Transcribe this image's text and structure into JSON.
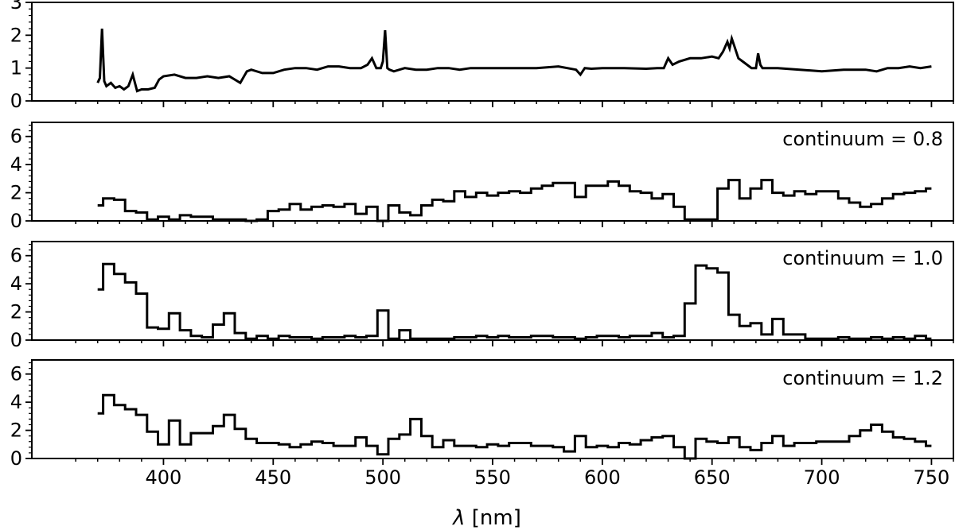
{
  "figure": {
    "xlabel_sym": "λ",
    "xlabel_unit": " [nm]"
  },
  "chart_data": [
    {
      "type": "line",
      "panel": "spectrum",
      "xlim": [
        340,
        760
      ],
      "ylim": [
        0,
        3
      ],
      "yticks": [
        "0",
        "1",
        "2",
        "3"
      ],
      "annotation": "",
      "series": [
        {
          "color": "#000000",
          "x": [
            370,
            371,
            372,
            373,
            374,
            376,
            378,
            380,
            382,
            384,
            386,
            388,
            390,
            393,
            396,
            398,
            400,
            405,
            410,
            415,
            420,
            425,
            430,
            435,
            438,
            440,
            445,
            450,
            455,
            460,
            465,
            470,
            475,
            480,
            485,
            490,
            493,
            495,
            497,
            499,
            500,
            501,
            502,
            503,
            505,
            510,
            515,
            520,
            525,
            530,
            535,
            540,
            545,
            550,
            560,
            570,
            580,
            588,
            590,
            592,
            595,
            600,
            610,
            620,
            625,
            628,
            630,
            632,
            635,
            640,
            645,
            650,
            653,
            655,
            657,
            658,
            659,
            660,
            662,
            665,
            668,
            670,
            671,
            672,
            673,
            675,
            680,
            690,
            700,
            710,
            720,
            725,
            730,
            735,
            740,
            745,
            750
          ],
          "y": [
            0.55,
            0.7,
            2.2,
            0.6,
            0.45,
            0.55,
            0.4,
            0.45,
            0.35,
            0.45,
            0.8,
            0.3,
            0.35,
            0.35,
            0.4,
            0.65,
            0.75,
            0.8,
            0.7,
            0.7,
            0.75,
            0.7,
            0.75,
            0.55,
            0.9,
            0.95,
            0.85,
            0.85,
            0.95,
            1.0,
            1.0,
            0.95,
            1.05,
            1.05,
            1.0,
            1.0,
            1.1,
            1.3,
            1.0,
            1.0,
            1.2,
            2.15,
            1.0,
            0.95,
            0.9,
            1.0,
            0.95,
            0.95,
            1.0,
            1.0,
            0.95,
            1.0,
            1.0,
            1.0,
            1.0,
            1.0,
            1.05,
            0.95,
            0.8,
            1.0,
            0.98,
            1.0,
            1.0,
            0.98,
            1.0,
            1.0,
            1.3,
            1.1,
            1.2,
            1.3,
            1.3,
            1.35,
            1.3,
            1.5,
            1.8,
            1.6,
            1.9,
            1.7,
            1.3,
            1.15,
            1.0,
            1.0,
            1.45,
            1.1,
            1.0,
            1.0,
            1.0,
            0.95,
            0.9,
            0.95,
            0.95,
            0.9,
            1.0,
            1.0,
            1.05,
            1.0,
            1.05
          ]
        }
      ]
    },
    {
      "type": "line",
      "panel": "continuum-0.8",
      "step": true,
      "xlim": [
        340,
        760
      ],
      "ylim": [
        0,
        7
      ],
      "yticks": [
        "0",
        "2",
        "4",
        "6"
      ],
      "annotation": "continuum = 0.8",
      "series": [
        {
          "color": "#000000",
          "x": [
            370,
            375,
            380,
            385,
            390,
            395,
            400,
            405,
            410,
            415,
            420,
            425,
            430,
            435,
            440,
            445,
            450,
            455,
            460,
            465,
            470,
            475,
            480,
            485,
            490,
            495,
            500,
            505,
            510,
            515,
            520,
            525,
            530,
            535,
            540,
            545,
            550,
            555,
            560,
            565,
            570,
            575,
            580,
            585,
            590,
            595,
            600,
            605,
            610,
            615,
            620,
            625,
            630,
            635,
            640,
            645,
            650,
            655,
            660,
            665,
            670,
            675,
            680,
            685,
            690,
            695,
            700,
            705,
            710,
            715,
            720,
            725,
            730,
            735,
            740,
            745,
            750
          ],
          "y": [
            1.1,
            1.6,
            1.5,
            0.7,
            0.6,
            0.1,
            0.3,
            0.1,
            0.4,
            0.3,
            0.3,
            0.1,
            0.1,
            0.1,
            0.0,
            0.1,
            0.7,
            0.8,
            1.2,
            0.8,
            1.0,
            1.1,
            1.0,
            1.2,
            0.5,
            1.0,
            0.0,
            1.1,
            0.6,
            0.4,
            1.1,
            1.5,
            1.4,
            2.1,
            1.7,
            2.0,
            1.8,
            2.0,
            2.1,
            2.0,
            2.3,
            2.5,
            2.7,
            2.7,
            1.7,
            2.5,
            2.5,
            2.8,
            2.5,
            2.1,
            2.0,
            1.6,
            1.9,
            1.0,
            0.1,
            0.1,
            0.1,
            2.3,
            2.9,
            1.6,
            2.3,
            2.9,
            2.0,
            1.8,
            2.1,
            1.9,
            2.1,
            2.1,
            1.6,
            1.3,
            1.0,
            1.2,
            1.6,
            1.9,
            2.0,
            2.1,
            2.3
          ]
        }
      ]
    },
    {
      "type": "line",
      "panel": "continuum-1.0",
      "step": true,
      "xlim": [
        340,
        760
      ],
      "ylim": [
        0,
        7
      ],
      "yticks": [
        "0",
        "2",
        "4",
        "6"
      ],
      "annotation": "continuum = 1.0",
      "series": [
        {
          "color": "#000000",
          "x": [
            370,
            375,
            380,
            385,
            390,
            395,
            400,
            405,
            410,
            415,
            420,
            425,
            430,
            435,
            440,
            445,
            450,
            455,
            460,
            465,
            470,
            475,
            480,
            485,
            490,
            495,
            500,
            505,
            510,
            515,
            520,
            525,
            530,
            535,
            540,
            545,
            550,
            555,
            560,
            565,
            570,
            575,
            580,
            585,
            590,
            595,
            600,
            605,
            610,
            615,
            620,
            625,
            630,
            635,
            640,
            645,
            650,
            655,
            660,
            665,
            670,
            675,
            680,
            685,
            690,
            695,
            700,
            705,
            710,
            715,
            720,
            725,
            730,
            735,
            740,
            745,
            750
          ],
          "y": [
            3.6,
            5.4,
            4.7,
            4.1,
            3.3,
            0.9,
            0.8,
            1.9,
            0.7,
            0.3,
            0.2,
            1.1,
            1.9,
            0.5,
            0.1,
            0.3,
            0.1,
            0.3,
            0.2,
            0.2,
            0.1,
            0.2,
            0.2,
            0.3,
            0.2,
            0.3,
            2.1,
            0.1,
            0.7,
            0.1,
            0.1,
            0.1,
            0.1,
            0.2,
            0.2,
            0.3,
            0.2,
            0.3,
            0.2,
            0.2,
            0.3,
            0.3,
            0.2,
            0.2,
            0.1,
            0.2,
            0.3,
            0.3,
            0.2,
            0.3,
            0.3,
            0.5,
            0.2,
            0.3,
            2.6,
            5.3,
            5.1,
            4.8,
            1.8,
            1.0,
            1.2,
            0.4,
            1.5,
            0.4,
            0.4,
            0.1,
            0.1,
            0.1,
            0.2,
            0.1,
            0.1,
            0.2,
            0.1,
            0.2,
            0.1,
            0.3,
            0.1
          ]
        }
      ]
    },
    {
      "type": "line",
      "panel": "continuum-1.2",
      "step": true,
      "xlim": [
        340,
        760
      ],
      "ylim": [
        0,
        7
      ],
      "yticks": [
        "0",
        "2",
        "4",
        "6"
      ],
      "annotation": "continuum = 1.2",
      "series": [
        {
          "color": "#000000",
          "x": [
            370,
            375,
            380,
            385,
            390,
            395,
            400,
            405,
            410,
            415,
            420,
            425,
            430,
            435,
            440,
            445,
            450,
            455,
            460,
            465,
            470,
            475,
            480,
            485,
            490,
            495,
            500,
            505,
            510,
            515,
            520,
            525,
            530,
            535,
            540,
            545,
            550,
            555,
            560,
            565,
            570,
            575,
            580,
            585,
            590,
            595,
            600,
            605,
            610,
            615,
            620,
            625,
            630,
            635,
            640,
            645,
            650,
            655,
            660,
            665,
            670,
            675,
            680,
            685,
            690,
            695,
            700,
            705,
            710,
            715,
            720,
            725,
            730,
            735,
            740,
            745,
            750
          ],
          "y": [
            3.2,
            4.5,
            3.8,
            3.5,
            3.1,
            1.9,
            1.0,
            2.7,
            1.0,
            1.8,
            1.8,
            2.3,
            3.1,
            2.1,
            1.4,
            1.1,
            1.1,
            1.0,
            0.8,
            1.0,
            1.2,
            1.1,
            0.9,
            0.9,
            1.5,
            0.9,
            0.3,
            1.4,
            1.7,
            2.8,
            1.6,
            0.8,
            1.3,
            0.9,
            0.9,
            0.8,
            1.0,
            0.9,
            1.1,
            1.1,
            0.9,
            0.9,
            0.8,
            0.5,
            1.6,
            0.8,
            0.9,
            0.8,
            1.1,
            1.0,
            1.3,
            1.5,
            1.6,
            0.8,
            0.0,
            1.4,
            1.2,
            1.1,
            1.5,
            0.8,
            0.6,
            1.1,
            1.6,
            0.9,
            1.1,
            1.1,
            1.2,
            1.2,
            1.2,
            1.6,
            2.0,
            2.4,
            1.9,
            1.5,
            1.4,
            1.2,
            0.9
          ]
        }
      ]
    }
  ]
}
